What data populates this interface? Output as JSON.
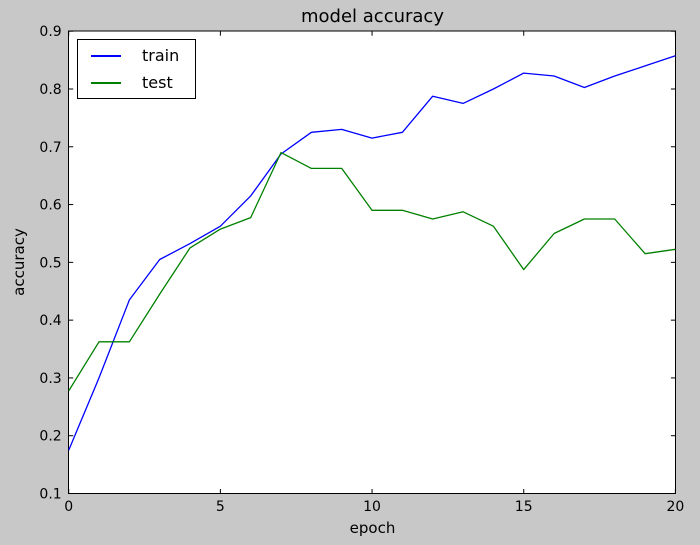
{
  "chart_data": {
    "type": "line",
    "title": "model accuracy",
    "xlabel": "epoch",
    "ylabel": "accuracy",
    "xlim": [
      0,
      20
    ],
    "ylim": [
      0.1,
      0.9
    ],
    "xticks": [
      0,
      5,
      10,
      15,
      20
    ],
    "xtick_labels": [
      "0",
      "5",
      "10",
      "15",
      "20"
    ],
    "yticks": [
      0.1,
      0.2,
      0.3,
      0.4,
      0.5,
      0.6,
      0.7,
      0.8,
      0.9
    ],
    "ytick_labels": [
      "0.1",
      "0.2",
      "0.3",
      "0.4",
      "0.5",
      "0.6",
      "0.7",
      "0.8",
      "0.9"
    ],
    "grid": false,
    "legend_position": "upper-left",
    "x": [
      0,
      1,
      2,
      3,
      4,
      5,
      6,
      7,
      8,
      9,
      10,
      11,
      12,
      13,
      14,
      15,
      16,
      17,
      18,
      19,
      20
    ],
    "series": [
      {
        "name": "train",
        "color": "#0000ff",
        "values": [
          0.175,
          0.3,
          0.435,
          0.505,
          0.5325,
          0.5625,
          0.615,
          0.6875,
          0.725,
          0.73,
          0.715,
          0.725,
          0.7875,
          0.775,
          0.8,
          0.8275,
          0.8225,
          0.8025,
          0.8225,
          0.84,
          0.8575
        ]
      },
      {
        "name": "test",
        "color": "#008000",
        "values": [
          0.2775,
          0.3625,
          0.3625,
          0.445,
          0.525,
          0.5575,
          0.5775,
          0.69,
          0.6625,
          0.6625,
          0.59,
          0.59,
          0.575,
          0.5875,
          0.5625,
          0.4875,
          0.55,
          0.575,
          0.575,
          0.515,
          0.5225
        ]
      }
    ],
    "plot_background": "#ffffff",
    "figure_background": "#c8c8c8",
    "axis_color": "#000000"
  }
}
